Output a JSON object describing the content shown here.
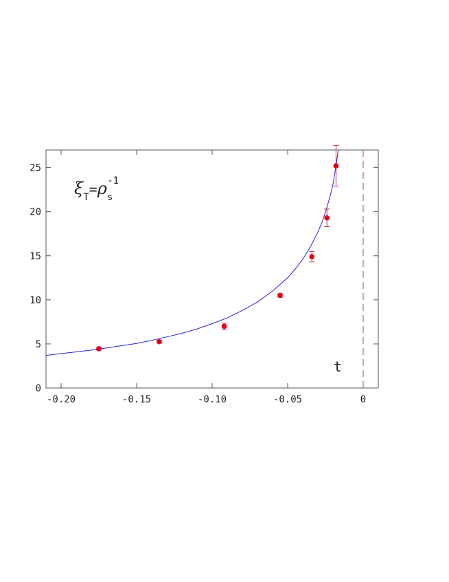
{
  "chart_data": {
    "type": "scatter",
    "title": "",
    "xlabel": "t",
    "ylabel": "",
    "xlim": [
      -0.21,
      0.01
    ],
    "ylim": [
      0,
      27
    ],
    "grid": false,
    "x_ticks": [
      -0.2,
      -0.15,
      -0.1,
      -0.05,
      0
    ],
    "x_tick_labels": [
      "-0.20",
      "-0.15",
      "-0.10",
      "-0.05",
      "0"
    ],
    "y_ticks": [
      0,
      5,
      10,
      15,
      20,
      25
    ],
    "y_tick_labels": [
      "0",
      "5",
      "10",
      "15",
      "20",
      "25"
    ],
    "annotation": {
      "xi": "ξ",
      "xi_sub": "T",
      "equals": "=",
      "rho": "ρ",
      "rho_sub": "s",
      "rho_sup": "-1"
    },
    "critical_line_x": 0,
    "series": [
      {
        "kind": "points",
        "color": "#e0001b",
        "points": [
          {
            "x": -0.175,
            "y": 4.45,
            "err": 0.15
          },
          {
            "x": -0.135,
            "y": 5.25,
            "err": 0.15
          },
          {
            "x": -0.092,
            "y": 7.0,
            "err": 0.35
          },
          {
            "x": -0.055,
            "y": 10.5,
            "err": 0.2
          },
          {
            "x": -0.034,
            "y": 14.9,
            "err": 0.6
          },
          {
            "x": -0.024,
            "y": 19.3,
            "err": 1.0
          },
          {
            "x": -0.018,
            "y": 25.2,
            "err": 2.3
          }
        ]
      },
      {
        "kind": "fit",
        "color": "#2222dd",
        "x": [
          -0.21,
          -0.2,
          -0.19,
          -0.18,
          -0.17,
          -0.16,
          -0.15,
          -0.14,
          -0.13,
          -0.12,
          -0.11,
          -0.1,
          -0.09,
          -0.08,
          -0.07,
          -0.06,
          -0.05,
          -0.045,
          -0.04,
          -0.035,
          -0.03,
          -0.027,
          -0.024,
          -0.022,
          -0.02,
          -0.018,
          -0.0165,
          -0.0155
        ],
        "y": [
          3.7,
          3.9,
          4.1,
          4.3,
          4.55,
          4.8,
          5.05,
          5.4,
          5.8,
          6.2,
          6.7,
          7.3,
          7.95,
          8.8,
          9.75,
          11.0,
          12.5,
          13.5,
          14.6,
          16.0,
          17.7,
          18.9,
          20.5,
          21.7,
          23.1,
          25.2,
          27.0,
          28.5
        ]
      }
    ]
  }
}
